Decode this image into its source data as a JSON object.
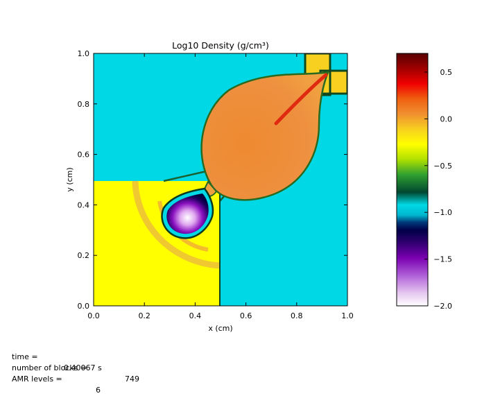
{
  "chart_data": {
    "type": "heatmap",
    "title": "Log10 Density (g/cm³)",
    "xlabel": "x (cm)",
    "ylabel": "y (cm)",
    "xlim": [
      0.0,
      1.0
    ],
    "ylim": [
      0.0,
      1.0
    ],
    "x_ticks": [
      "0.0",
      "0.2",
      "0.4",
      "0.6",
      "0.8",
      "1.0"
    ],
    "y_ticks": [
      "0.0",
      "0.2",
      "0.4",
      "0.6",
      "0.8",
      "1.0"
    ],
    "colorbar": {
      "range": [
        -2.0,
        0.7
      ],
      "ticks": [
        "0.5",
        "0.0",
        "−0.5",
        "−1.0",
        "−1.5",
        "−2.0"
      ]
    }
  },
  "info": {
    "time_label": "time =",
    "time_value": "0.40067 s",
    "blocks_label": "number of blocks =",
    "blocks_value": "749",
    "amr_label": "AMR levels =",
    "amr_value": "6"
  }
}
